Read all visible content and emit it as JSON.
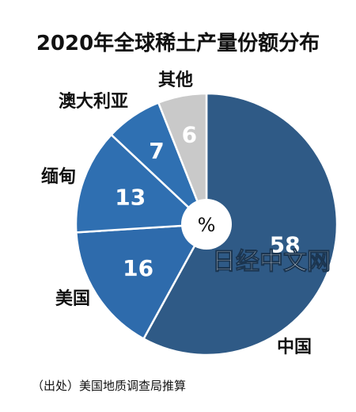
{
  "title": "2020年全球稀土产量份额分布",
  "center_label": "%",
  "watermark": "日经中文网",
  "source": "（出处）美国地质调查局推算",
  "chart_data": {
    "type": "pie",
    "unit": "%",
    "title": "2020年全球稀土产量份额分布",
    "slices": [
      {
        "name": "中国",
        "value": 58,
        "color": "#2f5a86"
      },
      {
        "name": "美国",
        "value": 16,
        "color": "#2e6bac"
      },
      {
        "name": "缅甸",
        "value": 13,
        "color": "#2f6fb1"
      },
      {
        "name": "澳大利亚",
        "value": 7,
        "color": "#2f70b2"
      },
      {
        "name": "其他",
        "value": 6,
        "color": "#c9c9c9"
      }
    ]
  }
}
